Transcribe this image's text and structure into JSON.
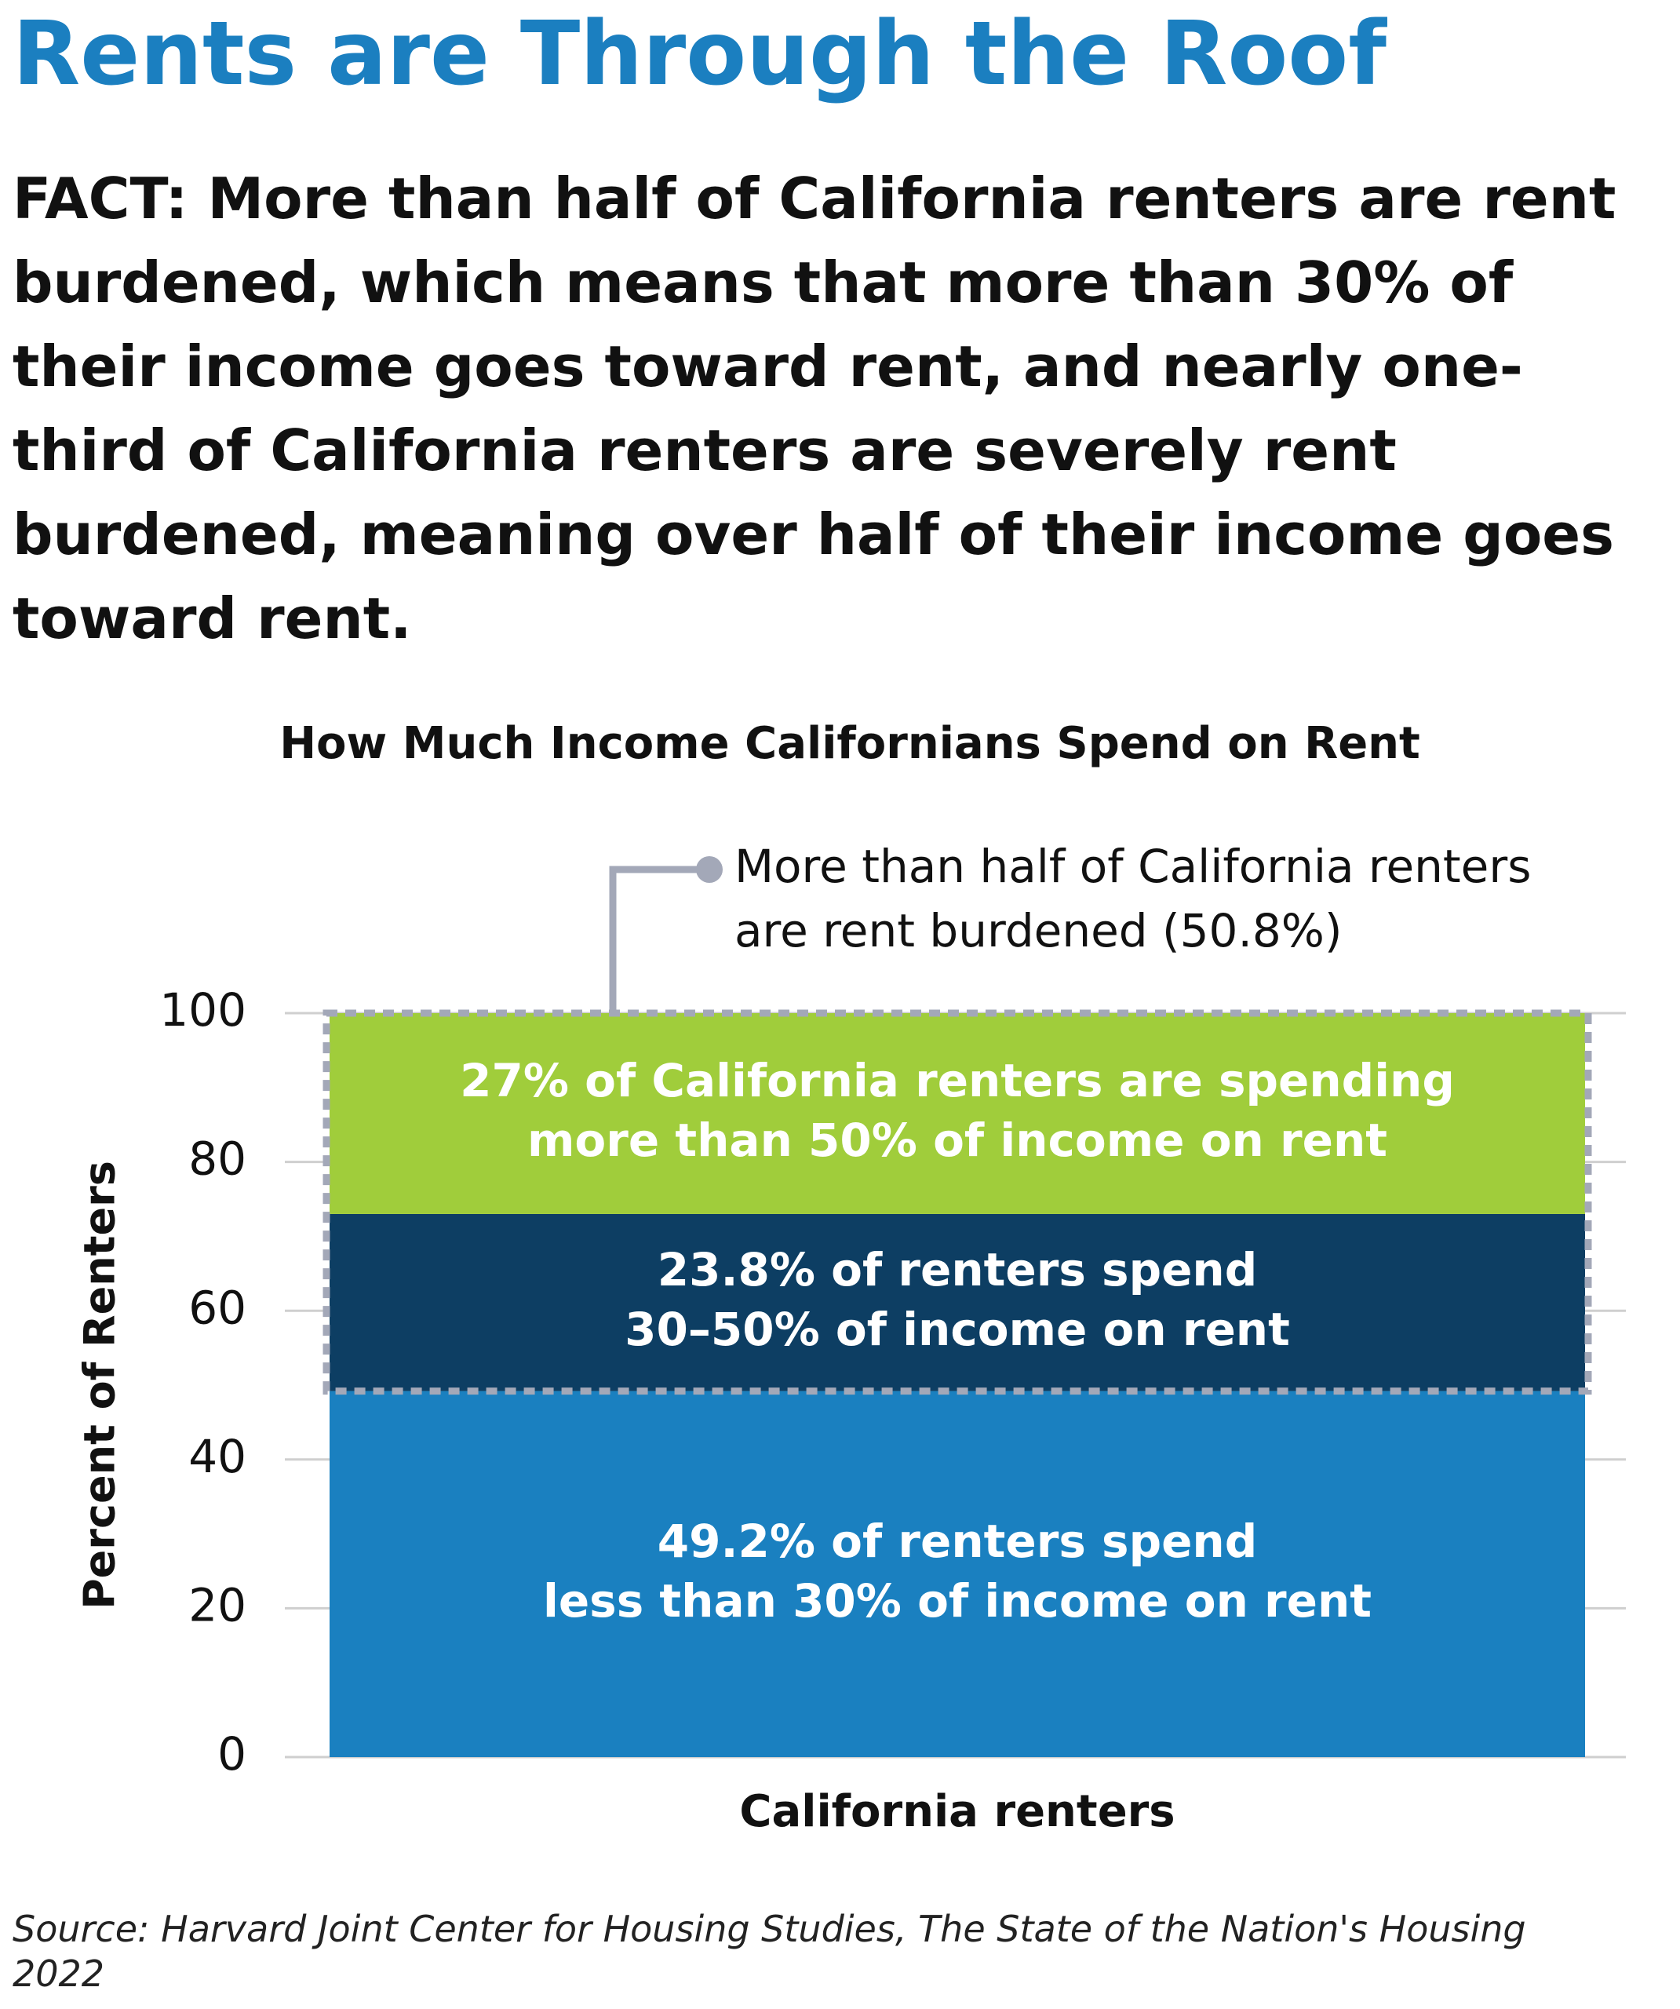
{
  "header": {
    "title": "Rents are Through the Roof"
  },
  "fact": {
    "label": "FACT:",
    "text": "More than half of California renters are rent burdened, which means that more than 30% of their income goes toward rent, and nearly one-third of California renters are severely rent burdened, meaning over half of their income goes toward rent."
  },
  "chart_data": {
    "type": "stacked-bar",
    "title": "How Much Income Californians Spend on Rent",
    "y_label": "Percent of Renters",
    "categories": [
      "California renters"
    ],
    "series": [
      {
        "color": "#1a80c0",
        "values": [
          49.2
        ],
        "value_labels": [
          [
            "49.2% of renters spend",
            "less than 30% of income on rent"
          ]
        ]
      },
      {
        "color": "#0d3e63",
        "values": [
          23.8
        ],
        "value_labels": [
          [
            "23.8% of renters spend",
            "30–50% of income on rent"
          ]
        ]
      },
      {
        "color": "#a0cd3b",
        "values": [
          27
        ],
        "value_labels": [
          [
            "27% of California renters are spending",
            "more than 50% of income on rent"
          ]
        ]
      }
    ],
    "annotation": {
      "lines": [
        "More than half of California renters",
        "are rent burdened (50.8%)"
      ]
    },
    "ylim": [
      0,
      100
    ],
    "yticks": [
      0,
      20,
      40,
      60,
      80,
      100
    ],
    "grid": true
  },
  "source": "Source: Harvard Joint Center for Housing Studies, The State of the Nation's Housing 2022"
}
